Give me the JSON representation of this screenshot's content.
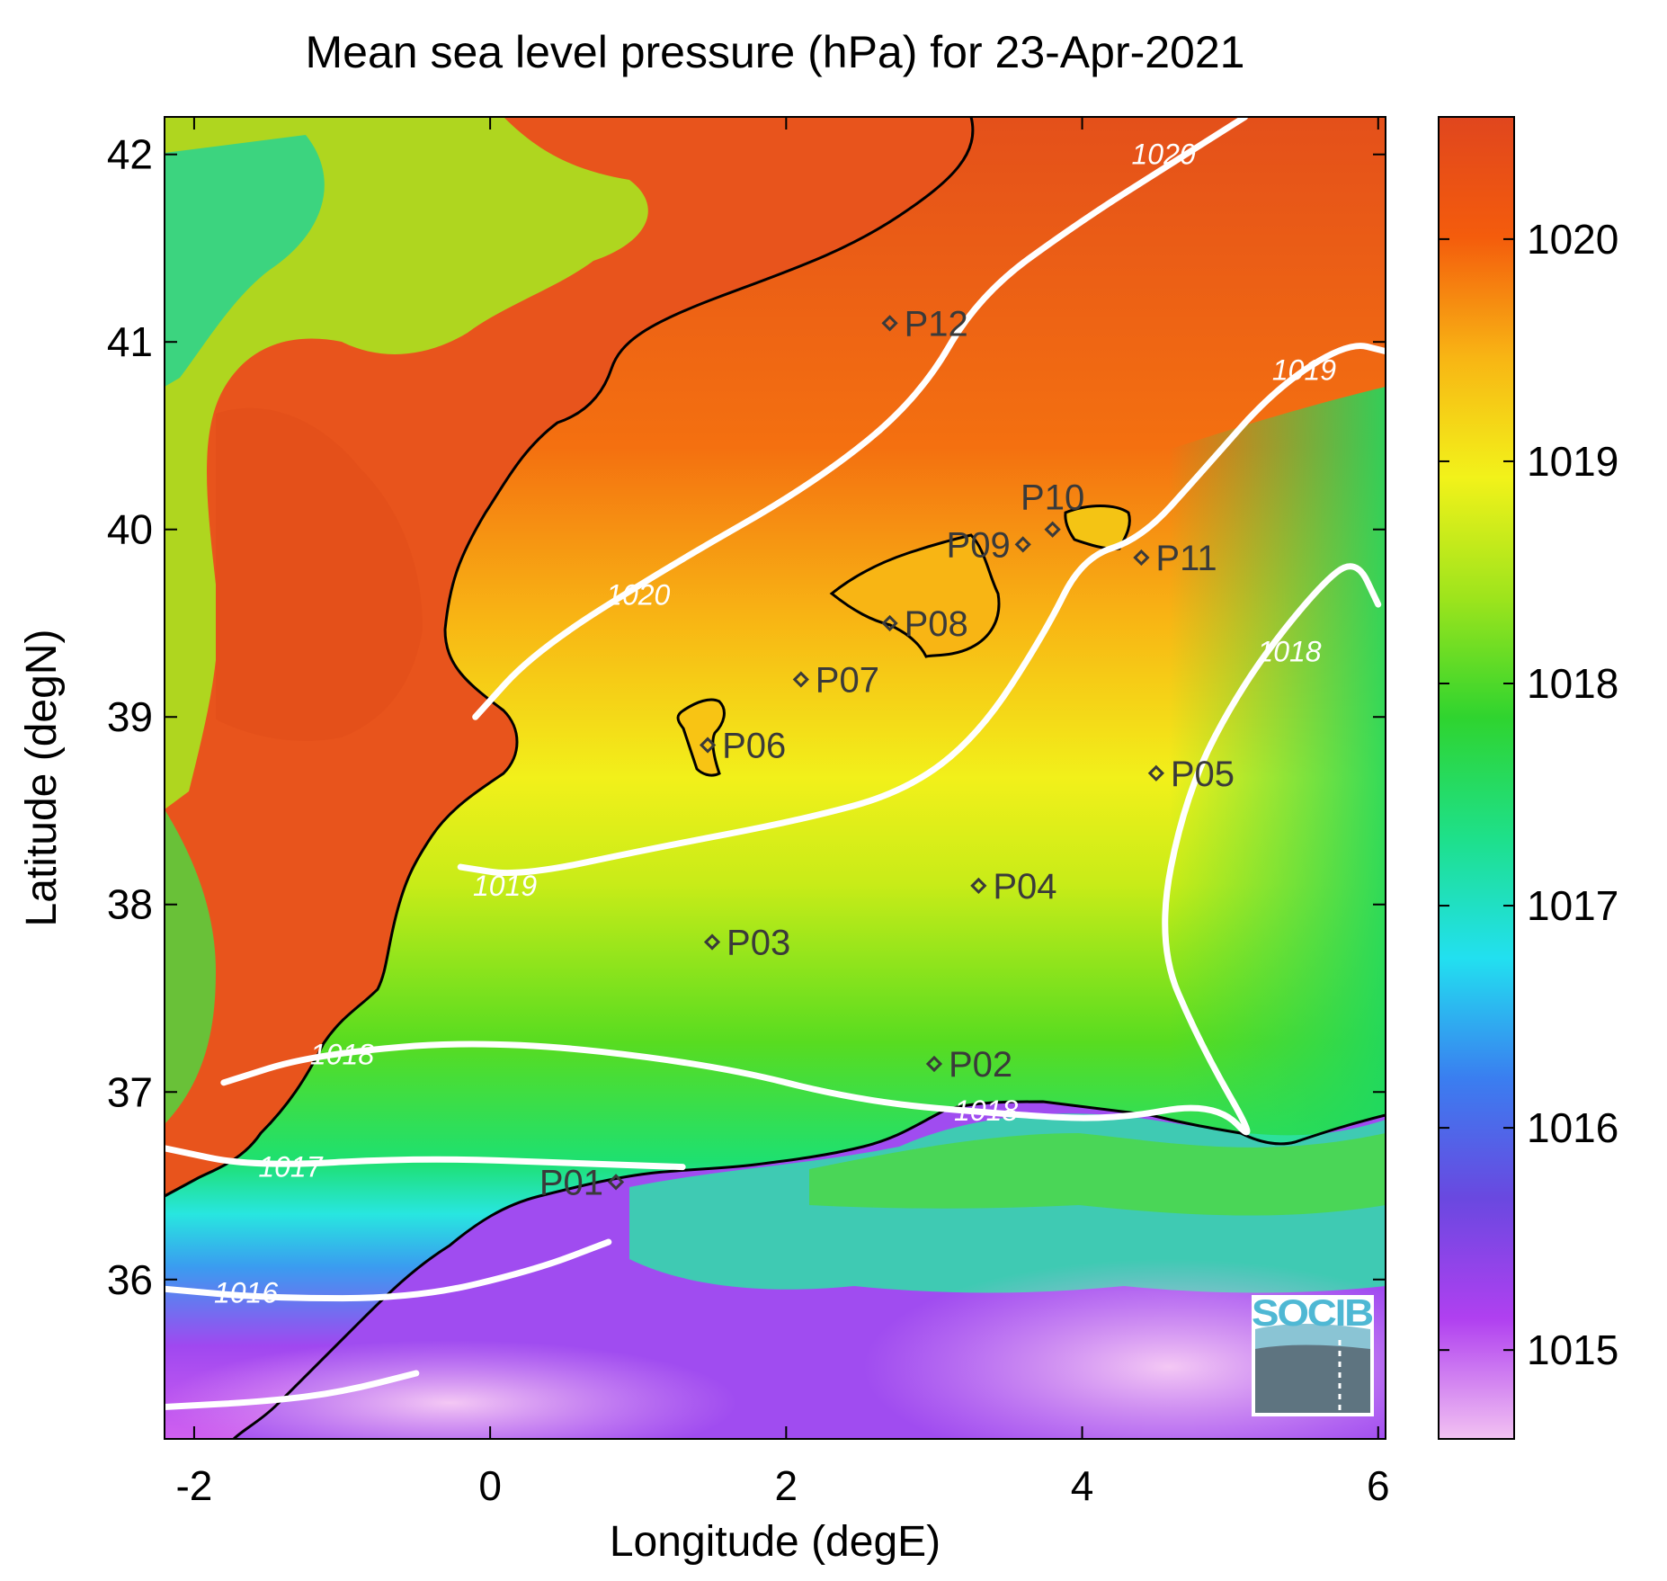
{
  "title": "Mean sea level pressure (hPa) for 23-Apr-2021",
  "xlabel": "Longitude (degE)",
  "ylabel": "Latitude (degN)",
  "xlim": [
    -2.2,
    6.05
  ],
  "ylim": [
    35.15,
    42.2
  ],
  "xticks": [
    -2,
    0,
    2,
    4,
    6
  ],
  "yticks": [
    36,
    37,
    38,
    39,
    40,
    41,
    42
  ],
  "colorbar": {
    "range": [
      1014.6,
      1020.55
    ],
    "ticks": [
      1015,
      1016,
      1017,
      1018,
      1019,
      1020
    ],
    "colormap": [
      "#f2c2f2",
      "#b040f0",
      "#6a48e0",
      "#3a7ef0",
      "#22e0f0",
      "#1ee08a",
      "#2fd42f",
      "#9ee41c",
      "#f2f21a",
      "#f8b514",
      "#f45c0c",
      "#e0461e"
    ]
  },
  "stations": [
    {
      "id": "P01",
      "lon": 0.85,
      "lat": 36.52,
      "label_side": "left"
    },
    {
      "id": "P02",
      "lon": 3.0,
      "lat": 37.15,
      "label_side": "right"
    },
    {
      "id": "P03",
      "lon": 1.5,
      "lat": 37.8,
      "label_side": "right"
    },
    {
      "id": "P04",
      "lon": 3.3,
      "lat": 38.1,
      "label_side": "right"
    },
    {
      "id": "P05",
      "lon": 4.5,
      "lat": 38.7,
      "label_side": "right"
    },
    {
      "id": "P06",
      "lon": 1.47,
      "lat": 38.85,
      "label_side": "right"
    },
    {
      "id": "P07",
      "lon": 2.1,
      "lat": 39.2,
      "label_side": "right"
    },
    {
      "id": "P08",
      "lon": 2.7,
      "lat": 39.5,
      "label_side": "right"
    },
    {
      "id": "P09",
      "lon": 3.6,
      "lat": 39.92,
      "label_side": "left"
    },
    {
      "id": "P10",
      "lon": 3.8,
      "lat": 40.0,
      "label_side": "above"
    },
    {
      "id": "P11",
      "lon": 4.4,
      "lat": 39.85,
      "label_side": "right"
    },
    {
      "id": "P12",
      "lon": 2.7,
      "lat": 41.1,
      "label_side": "right"
    }
  ],
  "contours": [
    {
      "level": 1020,
      "points": [
        [
          -0.1,
          39.0
        ],
        [
          0.3,
          39.35
        ],
        [
          1.2,
          39.8
        ],
        [
          2.2,
          40.25
        ],
        [
          2.9,
          40.7
        ],
        [
          3.3,
          41.25
        ],
        [
          4.0,
          41.65
        ],
        [
          4.6,
          41.95
        ],
        [
          5.1,
          42.2
        ]
      ],
      "labels": [
        [
          1.0,
          39.65
        ],
        [
          4.55,
          42.0
        ]
      ]
    },
    {
      "level": 1019,
      "points": [
        [
          -0.2,
          38.2
        ],
        [
          0.2,
          38.15
        ],
        [
          1.1,
          38.3
        ],
        [
          2.1,
          38.45
        ],
        [
          2.8,
          38.6
        ],
        [
          3.3,
          38.9
        ],
        [
          3.75,
          39.45
        ],
        [
          4.0,
          39.85
        ],
        [
          4.4,
          39.95
        ],
        [
          4.8,
          40.3
        ],
        [
          5.3,
          40.75
        ],
        [
          5.8,
          41.0
        ],
        [
          6.05,
          40.95
        ]
      ],
      "labels": [
        [
          0.1,
          38.1
        ],
        [
          5.5,
          40.85
        ]
      ]
    },
    {
      "level": 1018,
      "points": [
        [
          -1.8,
          37.05
        ],
        [
          -1.2,
          37.2
        ],
        [
          0.0,
          37.28
        ],
        [
          1.5,
          37.15
        ],
        [
          2.5,
          36.95
        ],
        [
          3.5,
          36.88
        ],
        [
          4.2,
          36.85
        ],
        [
          4.9,
          36.95
        ],
        [
          5.2,
          36.7
        ],
        [
          4.8,
          37.25
        ],
        [
          4.5,
          37.8
        ],
        [
          4.7,
          38.6
        ],
        [
          5.1,
          39.2
        ],
        [
          5.6,
          39.7
        ],
        [
          5.85,
          39.85
        ],
        [
          6.0,
          39.6
        ]
      ],
      "labels": [
        [
          -1.0,
          37.2
        ],
        [
          3.35,
          36.9
        ],
        [
          5.4,
          39.35
        ]
      ]
    },
    {
      "level": 1017,
      "points": [
        [
          -2.2,
          36.7
        ],
        [
          -1.6,
          36.6
        ],
        [
          -0.5,
          36.65
        ],
        [
          0.6,
          36.62
        ],
        [
          1.3,
          36.6
        ]
      ],
      "labels": [
        [
          -1.35,
          36.6
        ]
      ]
    },
    {
      "level": 1016,
      "points": [
        [
          -2.2,
          35.95
        ],
        [
          -1.5,
          35.9
        ],
        [
          -0.5,
          35.9
        ],
        [
          0.3,
          36.05
        ],
        [
          0.8,
          36.2
        ]
      ],
      "labels": [
        [
          -1.65,
          35.93
        ]
      ]
    },
    {
      "level": 1015,
      "points": [
        [
          -2.2,
          35.32
        ],
        [
          -1.5,
          35.35
        ],
        [
          -1.0,
          35.4
        ],
        [
          -0.5,
          35.5
        ]
      ],
      "labels": []
    }
  ]
}
